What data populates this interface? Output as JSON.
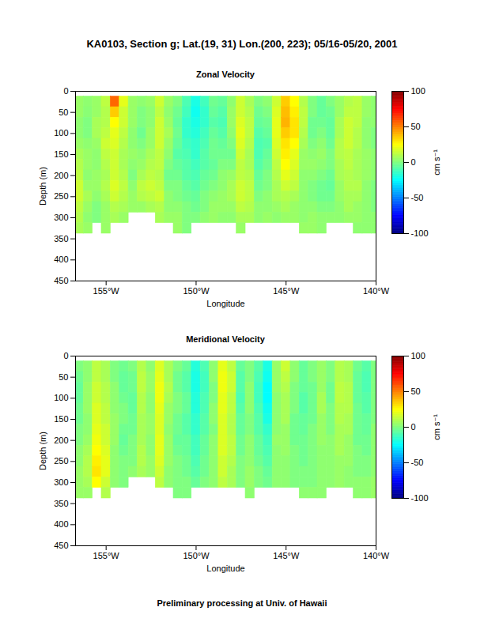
{
  "title": "KA0103, Section g; Lat.(19, 31) Lon.(200, 223); 05/16-05/20, 2001",
  "caption": "Preliminary processing at Univ. of Hawaii",
  "chart_data": [
    {
      "type": "heatmap",
      "title": "Zonal Velocity",
      "x_label": "Longitude",
      "y_label": "Depth (m)",
      "xlim": [
        -156.7,
        -140
      ],
      "xticks": [
        {
          "value": -155,
          "label": "155°W"
        },
        {
          "value": -150,
          "label": "150°W"
        },
        {
          "value": -145,
          "label": "145°W"
        },
        {
          "value": -140,
          "label": "140°W"
        }
      ],
      "ylim": [
        0,
        450
      ],
      "yticks": [
        0,
        50,
        100,
        150,
        200,
        250,
        300,
        350,
        400,
        450
      ],
      "x": [
        -156.5,
        -156,
        -155.5,
        -155,
        -154.5,
        -154,
        -153.5,
        -153,
        -152.5,
        -152,
        -151.5,
        -151,
        -150.5,
        -150,
        -149.5,
        -149,
        -148.5,
        -148,
        -147.5,
        -147,
        -146.5,
        -146,
        -145.5,
        -145,
        -144.5,
        -144,
        -143.5,
        -143,
        -142.5,
        -142,
        -141.5,
        -141,
        -140.5,
        -140
      ],
      "y": [
        25,
        50,
        75,
        100,
        125,
        150,
        175,
        200,
        225,
        250,
        275,
        300,
        325
      ],
      "values": [
        [
          5,
          5,
          3,
          3,
          5,
          8,
          10,
          12,
          15,
          15,
          12,
          10,
          8
        ],
        [
          3,
          2,
          0,
          0,
          3,
          5,
          5,
          3,
          5,
          8,
          5,
          3,
          5
        ],
        [
          5,
          5,
          8,
          8,
          5,
          3,
          3,
          5,
          5,
          3,
          0,
          0,
          null
        ],
        [
          12,
          10,
          10,
          12,
          15,
          12,
          10,
          8,
          10,
          8,
          5,
          5,
          5
        ],
        [
          55,
          35,
          25,
          20,
          18,
          15,
          15,
          15,
          18,
          15,
          10,
          8,
          null
        ],
        [
          20,
          15,
          15,
          12,
          10,
          8,
          8,
          10,
          12,
          10,
          8,
          5,
          null
        ],
        [
          5,
          5,
          5,
          3,
          3,
          5,
          3,
          0,
          3,
          5,
          5,
          null,
          null
        ],
        [
          3,
          0,
          0,
          -3,
          0,
          3,
          5,
          8,
          12,
          10,
          5,
          null,
          null
        ],
        [
          5,
          3,
          3,
          5,
          5,
          8,
          10,
          12,
          15,
          12,
          8,
          null,
          null
        ],
        [
          15,
          12,
          15,
          15,
          15,
          12,
          12,
          10,
          12,
          15,
          10,
          8,
          null
        ],
        [
          5,
          3,
          5,
          8,
          5,
          3,
          0,
          -3,
          0,
          3,
          3,
          5,
          null
        ],
        [
          0,
          -3,
          -5,
          -3,
          -5,
          -8,
          -5,
          -3,
          0,
          0,
          3,
          5,
          5
        ],
        [
          -10,
          -12,
          -15,
          -15,
          -12,
          -10,
          -8,
          -8,
          -5,
          -3,
          0,
          0,
          0
        ],
        [
          -20,
          -22,
          -20,
          -18,
          -15,
          -15,
          -12,
          -10,
          -8,
          -5,
          -3,
          0,
          null
        ],
        [
          -12,
          -15,
          -15,
          -12,
          -10,
          -8,
          -8,
          -5,
          -3,
          0,
          0,
          3,
          null
        ],
        [
          -3,
          -5,
          -8,
          -5,
          -3,
          -3,
          -5,
          -3,
          0,
          3,
          5,
          5,
          null
        ],
        [
          -5,
          -8,
          -10,
          -8,
          -5,
          -3,
          0,
          3,
          3,
          5,
          5,
          3,
          null
        ],
        [
          3,
          5,
          5,
          3,
          0,
          -3,
          0,
          5,
          8,
          8,
          5,
          3,
          null
        ],
        [
          15,
          15,
          18,
          20,
          18,
          15,
          12,
          12,
          15,
          15,
          12,
          8,
          5
        ],
        [
          8,
          10,
          12,
          12,
          10,
          8,
          8,
          10,
          12,
          12,
          10,
          8,
          null
        ],
        [
          0,
          -3,
          -5,
          -8,
          -10,
          -10,
          -8,
          -5,
          -3,
          0,
          3,
          3,
          null
        ],
        [
          3,
          0,
          -3,
          -5,
          -8,
          -5,
          -3,
          0,
          0,
          3,
          3,
          5,
          null
        ],
        [
          15,
          18,
          20,
          20,
          18,
          15,
          12,
          10,
          8,
          8,
          5,
          3,
          null
        ],
        [
          35,
          38,
          40,
          35,
          30,
          28,
          25,
          20,
          15,
          10,
          8,
          5,
          null
        ],
        [
          25,
          28,
          30,
          30,
          25,
          20,
          18,
          15,
          12,
          8,
          5,
          5,
          null
        ],
        [
          10,
          12,
          12,
          10,
          8,
          5,
          5,
          3,
          3,
          3,
          3,
          3,
          5
        ],
        [
          0,
          0,
          -3,
          -3,
          0,
          3,
          5,
          3,
          0,
          0,
          3,
          5,
          5
        ],
        [
          -5,
          -5,
          -3,
          0,
          3,
          5,
          3,
          0,
          -3,
          -3,
          0,
          3,
          3
        ],
        [
          0,
          -3,
          -5,
          -5,
          -3,
          0,
          0,
          -3,
          -5,
          -3,
          0,
          3,
          null
        ],
        [
          5,
          5,
          8,
          8,
          10,
          10,
          8,
          8,
          5,
          5,
          3,
          3,
          null
        ],
        [
          10,
          12,
          15,
          15,
          15,
          12,
          12,
          10,
          10,
          8,
          8,
          5,
          null
        ],
        [
          12,
          12,
          12,
          10,
          10,
          8,
          8,
          8,
          10,
          8,
          5,
          5,
          3
        ],
        [
          5,
          5,
          3,
          3,
          3,
          5,
          5,
          5,
          3,
          3,
          3,
          3,
          3
        ],
        [
          3,
          3,
          3,
          0,
          0,
          3,
          3,
          3,
          0,
          0,
          0,
          3,
          3
        ]
      ],
      "colorbar": {
        "label": "cm s⁻¹",
        "range": [
          -100,
          100
        ],
        "ticks": [
          -100,
          -50,
          0,
          50,
          100
        ]
      }
    },
    {
      "type": "heatmap",
      "title": "Meridional Velocity",
      "x_label": "Longitude",
      "y_label": "Depth (m)",
      "xlim": [
        -156.7,
        -140
      ],
      "xticks": [
        {
          "value": -155,
          "label": "155°W"
        },
        {
          "value": -150,
          "label": "150°W"
        },
        {
          "value": -145,
          "label": "145°W"
        },
        {
          "value": -140,
          "label": "140°W"
        }
      ],
      "ylim": [
        0,
        450
      ],
      "yticks": [
        0,
        50,
        100,
        150,
        200,
        250,
        300,
        350,
        400,
        450
      ],
      "x": [
        -156.5,
        -156,
        -155.5,
        -155,
        -154.5,
        -154,
        -153.5,
        -153,
        -152.5,
        -152,
        -151.5,
        -151,
        -150.5,
        -150,
        -149.5,
        -149,
        -148.5,
        -148,
        -147.5,
        -147,
        -146.5,
        -146,
        -145.5,
        -145,
        -144.5,
        -144,
        -143.5,
        -143,
        -142.5,
        -142,
        -141.5,
        -141,
        -140.5,
        -140
      ],
      "y": [
        25,
        50,
        75,
        100,
        125,
        150,
        175,
        200,
        225,
        250,
        275,
        300,
        325
      ],
      "values": [
        [
          0,
          -3,
          -5,
          -5,
          -3,
          -3,
          0,
          0,
          3,
          3,
          5,
          5,
          5
        ],
        [
          3,
          3,
          5,
          5,
          5,
          3,
          3,
          5,
          8,
          10,
          10,
          8,
          5
        ],
        [
          12,
          12,
          15,
          15,
          18,
          18,
          20,
          22,
          25,
          28,
          30,
          25,
          null
        ],
        [
          8,
          8,
          10,
          10,
          12,
          12,
          15,
          15,
          18,
          20,
          20,
          15,
          10
        ],
        [
          0,
          0,
          3,
          3,
          3,
          5,
          5,
          5,
          3,
          3,
          3,
          3,
          null
        ],
        [
          -3,
          -5,
          -5,
          -3,
          0,
          0,
          -3,
          -5,
          -3,
          0,
          0,
          0,
          null
        ],
        [
          0,
          -3,
          -3,
          -5,
          -5,
          -3,
          -3,
          0,
          0,
          0,
          3,
          null,
          null
        ],
        [
          10,
          12,
          12,
          10,
          10,
          8,
          8,
          8,
          10,
          10,
          8,
          null,
          null
        ],
        [
          3,
          5,
          5,
          3,
          3,
          5,
          5,
          3,
          3,
          5,
          5,
          null,
          null
        ],
        [
          18,
          20,
          22,
          22,
          20,
          18,
          18,
          20,
          20,
          18,
          15,
          12,
          null
        ],
        [
          8,
          8,
          10,
          8,
          5,
          5,
          3,
          5,
          5,
          5,
          3,
          3,
          null
        ],
        [
          0,
          -3,
          -3,
          0,
          0,
          -3,
          -3,
          -5,
          -3,
          0,
          0,
          0,
          0
        ],
        [
          -5,
          -8,
          -8,
          -5,
          -5,
          -8,
          -8,
          -5,
          -5,
          -3,
          -3,
          0,
          0
        ],
        [
          -18,
          -20,
          -20,
          -18,
          -18,
          -15,
          -15,
          -12,
          -12,
          -10,
          -8,
          -5,
          null
        ],
        [
          -10,
          -12,
          -12,
          -10,
          -10,
          -8,
          -8,
          -5,
          -5,
          -3,
          -3,
          0,
          null
        ],
        [
          3,
          3,
          0,
          0,
          3,
          3,
          0,
          3,
          3,
          3,
          3,
          3,
          null
        ],
        [
          20,
          22,
          22,
          20,
          20,
          18,
          18,
          18,
          18,
          15,
          15,
          12,
          null
        ],
        [
          12,
          15,
          15,
          12,
          12,
          10,
          10,
          12,
          12,
          10,
          8,
          8,
          null
        ],
        [
          -5,
          -8,
          -8,
          -10,
          -8,
          -5,
          -5,
          -3,
          -3,
          0,
          0,
          0,
          null
        ],
        [
          0,
          0,
          3,
          3,
          3,
          0,
          0,
          3,
          3,
          3,
          5,
          5,
          3
        ],
        [
          -8,
          -10,
          -12,
          -12,
          -10,
          -8,
          -8,
          -5,
          -5,
          -3,
          0,
          0,
          null
        ],
        [
          -20,
          -22,
          -25,
          -25,
          -22,
          -20,
          -15,
          -12,
          -10,
          -8,
          -5,
          -3,
          null
        ],
        [
          5,
          5,
          5,
          3,
          3,
          3,
          3,
          5,
          3,
          3,
          3,
          3,
          null
        ],
        [
          15,
          12,
          10,
          8,
          8,
          8,
          5,
          5,
          5,
          3,
          3,
          3,
          null
        ],
        [
          3,
          3,
          0,
          0,
          0,
          -3,
          -3,
          -3,
          0,
          0,
          0,
          0,
          null
        ],
        [
          -5,
          -5,
          -5,
          -8,
          -8,
          -5,
          -5,
          -3,
          -3,
          -3,
          0,
          0,
          3
        ],
        [
          0,
          0,
          -3,
          -3,
          -3,
          -3,
          0,
          0,
          0,
          0,
          0,
          0,
          3
        ],
        [
          5,
          5,
          5,
          8,
          8,
          5,
          5,
          5,
          3,
          3,
          3,
          3,
          3
        ],
        [
          0,
          0,
          -3,
          -3,
          0,
          0,
          0,
          3,
          3,
          3,
          3,
          3,
          null
        ],
        [
          10,
          10,
          12,
          12,
          10,
          10,
          8,
          8,
          8,
          5,
          5,
          5,
          null
        ],
        [
          8,
          8,
          10,
          10,
          10,
          8,
          8,
          5,
          5,
          5,
          3,
          3,
          null
        ],
        [
          -3,
          -5,
          -5,
          -5,
          -3,
          -3,
          -3,
          -3,
          0,
          0,
          0,
          3,
          3
        ],
        [
          -8,
          -10,
          -10,
          -8,
          -8,
          -5,
          -5,
          -3,
          -3,
          0,
          0,
          3,
          3
        ],
        [
          0,
          0,
          0,
          0,
          0,
          0,
          3,
          3,
          3,
          3,
          3,
          5,
          5
        ]
      ],
      "colorbar": {
        "label": "cm s⁻¹",
        "range": [
          -100,
          100
        ],
        "ticks": [
          -100,
          -50,
          0,
          50,
          100
        ]
      }
    }
  ]
}
